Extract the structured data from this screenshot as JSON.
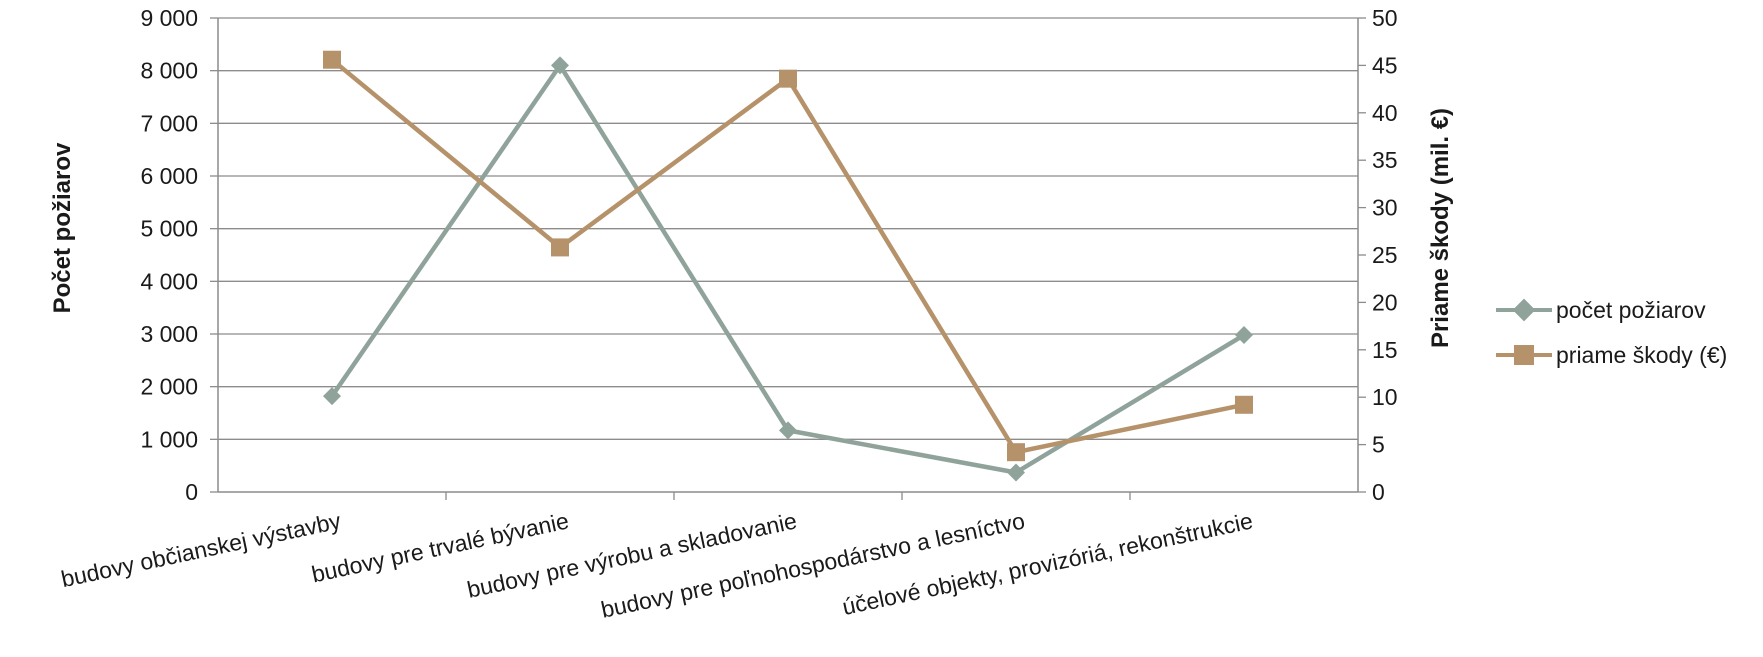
{
  "chart_data": {
    "type": "line",
    "title": "",
    "categories": [
      "budovy občianskej výstavby",
      "budovy pre trvalé bývanie",
      "budovy pre výrobu a skladovanie",
      "budovy pre poľnohospodárstvo a lesníctvo",
      "účelové objekty, provizóriá, rekonštrukcie"
    ],
    "y_left": {
      "label": "Počet požiarov",
      "range": [
        0,
        9000
      ],
      "ticks": [
        "0",
        "1 000",
        "2 000",
        "3 000",
        "4 000",
        "5 000",
        "6 000",
        "7 000",
        "8 000",
        "9 000"
      ]
    },
    "y_right": {
      "label": "Priame škody (mil. €)",
      "range": [
        0,
        50
      ],
      "ticks": [
        "0",
        "5",
        "10",
        "15",
        "20",
        "25",
        "30",
        "35",
        "40",
        "45",
        "50"
      ]
    },
    "series": [
      {
        "name": "počet požiarov",
        "axis": "left",
        "marker": "diamond",
        "color": "#8fa39b",
        "values": [
          1820,
          8100,
          1170,
          370,
          2980
        ]
      },
      {
        "name": "priame škody (€)",
        "axis": "right",
        "marker": "square",
        "color": "#b5926a",
        "values": [
          45.6,
          25.8,
          43.6,
          4.2,
          9.2
        ]
      }
    ],
    "grid": true,
    "legend_position": "right"
  }
}
